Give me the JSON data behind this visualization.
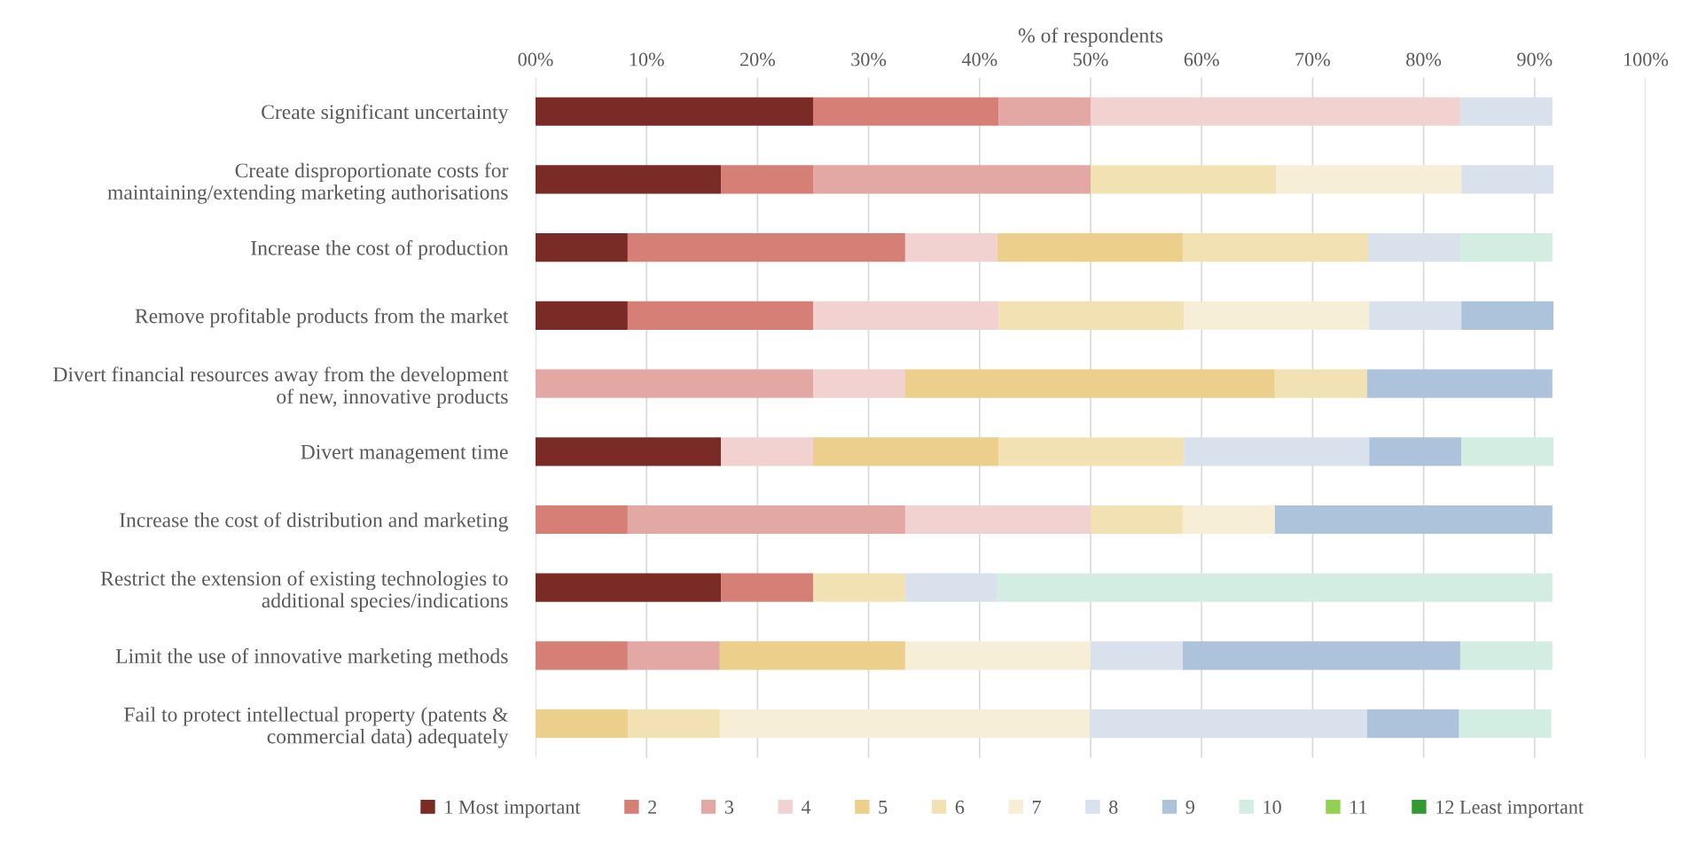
{
  "chart_data": {
    "type": "bar",
    "orientation": "horizontal",
    "stacked": true,
    "xlabel": "% of respondents",
    "categories": [
      "Create significant uncertainty",
      "Create disproportionate costs for\nmaintaining/extending marketing authorisations",
      "Increase the cost of production",
      "Remove profitable products from the market",
      "Divert financial resources away from the development\nof new, innovative products",
      "Divert management time",
      "Increase the cost of distribution and marketing",
      "Restrict the extension of existing technologies to\nadditional species/indications",
      "Limit the use of innovative marketing methods",
      "Fail to protect intellectual property (patents &\ncommercial data) adequately"
    ],
    "series": [
      {
        "name": "1 Most important",
        "color": "#7b2b26",
        "values": [
          25,
          16.7,
          8.3,
          8.3,
          0,
          16.7,
          0,
          16.7,
          0,
          0
        ]
      },
      {
        "name": "2",
        "color": "#d67f77",
        "values": [
          16.7,
          8.3,
          25,
          16.7,
          0,
          0,
          8.3,
          8.3,
          8.3,
          0
        ]
      },
      {
        "name": "3",
        "color": "#e3a8a3",
        "values": [
          8.3,
          25,
          0,
          0,
          25,
          0,
          25,
          0,
          8.3,
          0
        ]
      },
      {
        "name": "4",
        "color": "#f1d2d1",
        "values": [
          33.3,
          0,
          8.3,
          16.7,
          8.3,
          8.3,
          16.7,
          0,
          0,
          0
        ]
      },
      {
        "name": "5",
        "color": "#ebcf8b",
        "values": [
          0,
          0,
          16.7,
          0,
          33.3,
          16.7,
          0,
          0,
          16.7,
          8.3
        ]
      },
      {
        "name": "6",
        "color": "#f2e2b3",
        "values": [
          0,
          16.7,
          16.7,
          16.7,
          8.3,
          16.7,
          8.3,
          8.3,
          0,
          8.3
        ]
      },
      {
        "name": "7",
        "color": "#f7eed8",
        "values": [
          0,
          16.7,
          0,
          16.7,
          0,
          0,
          8.3,
          0,
          16.7,
          33.3
        ]
      },
      {
        "name": "8",
        "color": "#d8e1ec",
        "values": [
          8.3,
          8.3,
          8.3,
          8.3,
          0,
          16.7,
          0,
          8.3,
          8.3,
          25
        ]
      },
      {
        "name": "9",
        "color": "#adc3db",
        "values": [
          0,
          0,
          0,
          8.3,
          16.7,
          8.3,
          25,
          0,
          25,
          8.3
        ]
      },
      {
        "name": "10",
        "color": "#d3ede3",
        "values": [
          0,
          0,
          8.3,
          0,
          0,
          8.3,
          0,
          50,
          8.3,
          8.3
        ]
      },
      {
        "name": "11",
        "color": "#92d050",
        "values": [
          0,
          0,
          0,
          0,
          0,
          0,
          0,
          0,
          0,
          0
        ]
      },
      {
        "name": "12 Least important",
        "color": "#339933",
        "values": [
          0,
          0,
          0,
          0,
          0,
          0,
          0,
          0,
          0,
          0
        ]
      }
    ],
    "xlim": [
      0,
      100
    ],
    "xticks": [
      {
        "value": 0,
        "label": "00%"
      },
      {
        "value": 10,
        "label": "10%"
      },
      {
        "value": 20,
        "label": "20%"
      },
      {
        "value": 30,
        "label": "30%"
      },
      {
        "value": 40,
        "label": "40%"
      },
      {
        "value": 50,
        "label": "50%"
      },
      {
        "value": 60,
        "label": "60%"
      },
      {
        "value": 70,
        "label": "70%"
      },
      {
        "value": 80,
        "label": "80%"
      },
      {
        "value": 90,
        "label": "90%"
      },
      {
        "value": 100,
        "label": "100%"
      }
    ],
    "grid": "x",
    "legend": "bottom"
  }
}
